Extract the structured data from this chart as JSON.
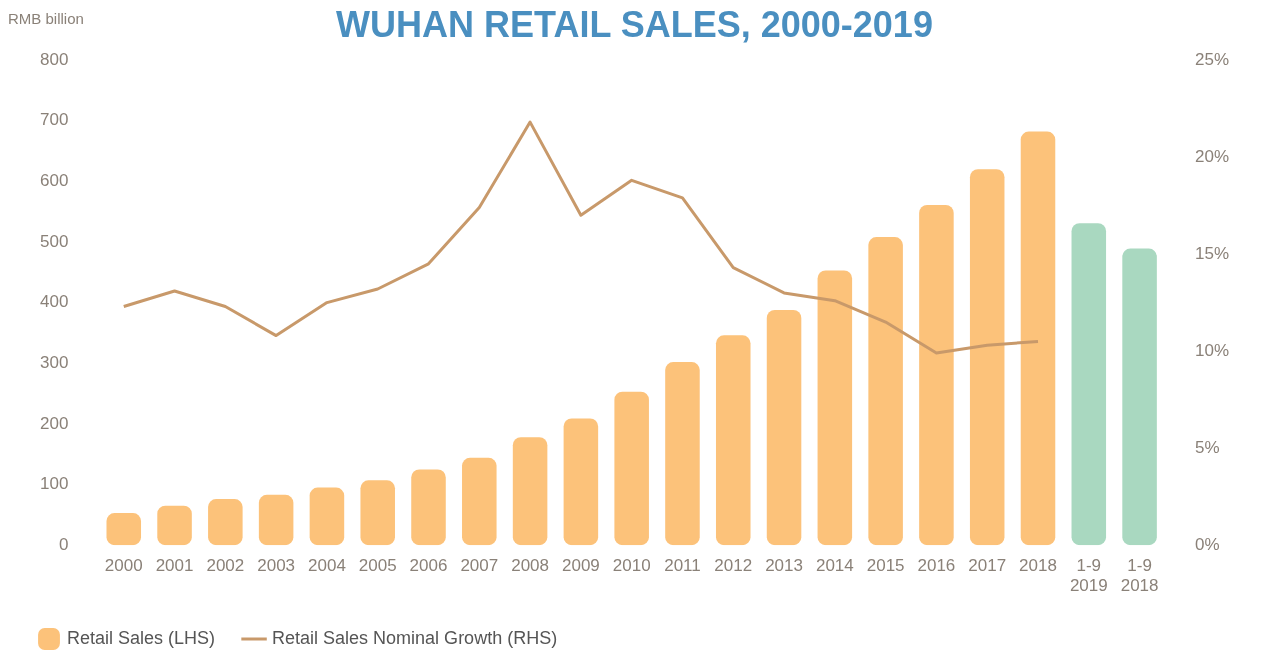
{
  "chart_data": {
    "type": "bar",
    "title": "WUHAN RETAIL SALES, 2000-2019",
    "ylabel": "RMB billion",
    "categories": [
      "2000",
      "2001",
      "2002",
      "2003",
      "2004",
      "2005",
      "2006",
      "2007",
      "2008",
      "2009",
      "2010",
      "2011",
      "2012",
      "2013",
      "2014",
      "2015",
      "2016",
      "2017",
      "2018",
      "1-9 2019",
      "1-9 2018"
    ],
    "series": [
      {
        "name": "Retail Sales (LHS)",
        "color": "#fcc27a",
        "colors": [
          "#fcc27a",
          "#fcc27a",
          "#fcc27a",
          "#fcc27a",
          "#fcc27a",
          "#fcc27a",
          "#fcc27a",
          "#fcc27a",
          "#fcc27a",
          "#fcc27a",
          "#fcc27a",
          "#fcc27a",
          "#fcc27a",
          "#fcc27a",
          "#fcc27a",
          "#fcc27a",
          "#fcc27a",
          "#fcc27a",
          "#fcc27a",
          "#a9d8c0",
          "#a9d8c0"
        ],
        "values": [
          53,
          65,
          76,
          83,
          95,
          107,
          125,
          144,
          178,
          209,
          253,
          302,
          346,
          388,
          453,
          508,
          561,
          620,
          682,
          531,
          489
        ]
      },
      {
        "name": "Retail Sales Nominal Growth (RHS)",
        "type": "line",
        "axis": "y2",
        "color": "#c8996a",
        "values": [
          12.3,
          13.1,
          12.3,
          10.8,
          12.5,
          13.2,
          14.5,
          17.4,
          21.8,
          17.0,
          18.8,
          17.9,
          14.3,
          13.0,
          12.6,
          11.5,
          9.9,
          10.3,
          10.5,
          null,
          null
        ]
      }
    ],
    "ylim": [
      0,
      800
    ],
    "yticks": [
      0,
      100,
      200,
      300,
      400,
      500,
      600,
      700,
      800
    ],
    "y2lim": [
      0,
      25
    ],
    "y2ticks": [
      {
        "value": 0,
        "label": "0%"
      },
      {
        "value": 5,
        "label": "5%"
      },
      {
        "value": 10,
        "label": "10%"
      },
      {
        "value": 15,
        "label": "15%"
      },
      {
        "value": 20,
        "label": "20%"
      },
      {
        "value": 25,
        "label": "25%"
      }
    ],
    "grid": false,
    "legend": "bottom left",
    "marker": "none",
    "line_style": "solid"
  }
}
